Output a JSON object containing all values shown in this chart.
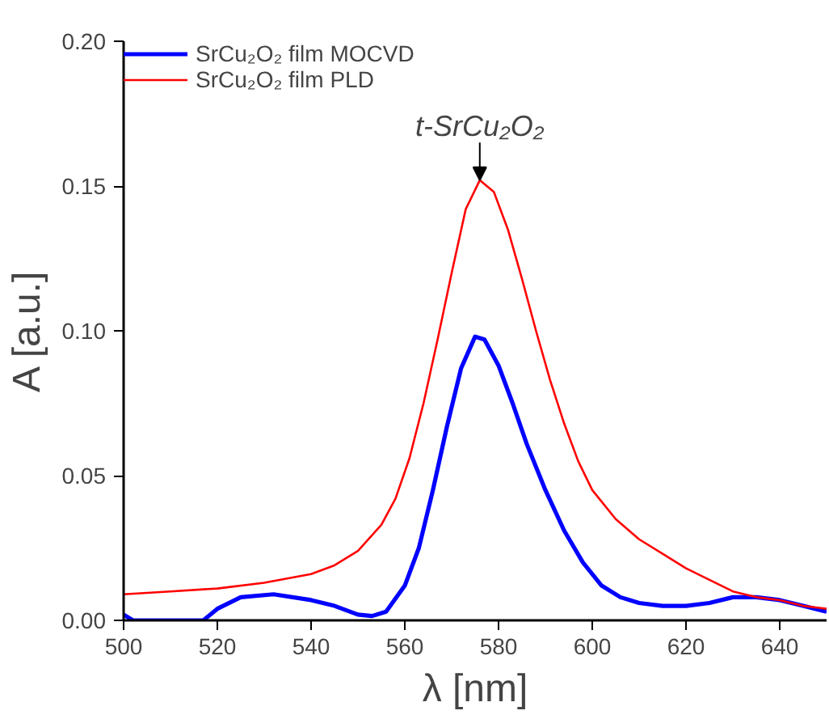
{
  "chart_data": {
    "type": "line",
    "xlabel": "λ [nm]",
    "ylabel": "A [a.u.]",
    "xlim": [
      500,
      650
    ],
    "ylim": [
      0,
      0.2
    ],
    "xticks": [
      500,
      520,
      540,
      560,
      580,
      600,
      620,
      640
    ],
    "yticks": [
      {
        "value": 0,
        "label": "0.00"
      },
      {
        "value": 0.05,
        "label": "0.05"
      },
      {
        "value": 0.1,
        "label": "0.10"
      },
      {
        "value": 0.15,
        "label": "0.15"
      },
      {
        "value": 0.2,
        "label": "0.20"
      }
    ],
    "legend": "top left",
    "grid": false,
    "line_style": "solid",
    "annotations": [
      {
        "text": "t-SrCu₂O₂",
        "x": 576,
        "y": 0.152
      }
    ],
    "series": [
      {
        "name": "SrCu₂O₂ film MOCVD",
        "color": "#0000ff",
        "x": [
          500,
          502,
          517,
          520,
          525,
          532,
          540,
          545,
          550,
          553,
          556,
          560,
          563,
          566,
          569,
          572,
          575,
          577,
          580,
          583,
          586,
          590,
          594,
          598,
          602,
          606,
          610,
          615,
          620,
          625,
          630,
          635,
          640,
          645,
          650
        ],
        "values": [
          0.002,
          0,
          0,
          0.004,
          0.008,
          0.009,
          0.007,
          0.005,
          0.002,
          0.0015,
          0.003,
          0.012,
          0.025,
          0.045,
          0.067,
          0.087,
          0.098,
          0.097,
          0.088,
          0.075,
          0.061,
          0.045,
          0.031,
          0.02,
          0.012,
          0.008,
          0.006,
          0.005,
          0.005,
          0.006,
          0.008,
          0.008,
          0.007,
          0.005,
          0.003
        ]
      },
      {
        "name": "SrCu₂O₂ film PLD",
        "color": "#ff0000",
        "x": [
          500,
          510,
          520,
          530,
          540,
          545,
          550,
          555,
          558,
          561,
          564,
          567,
          570,
          573,
          576,
          579,
          582,
          585,
          588,
          591,
          594,
          597,
          600,
          605,
          610,
          615,
          620,
          625,
          630,
          635,
          640,
          645,
          650
        ],
        "values": [
          0.009,
          0.01,
          0.011,
          0.013,
          0.016,
          0.019,
          0.024,
          0.033,
          0.042,
          0.056,
          0.075,
          0.097,
          0.12,
          0.142,
          0.152,
          0.148,
          0.135,
          0.118,
          0.1,
          0.083,
          0.068,
          0.055,
          0.045,
          0.035,
          0.028,
          0.023,
          0.018,
          0.014,
          0.01,
          0.008,
          0.007,
          0.005,
          0.004
        ]
      }
    ]
  }
}
